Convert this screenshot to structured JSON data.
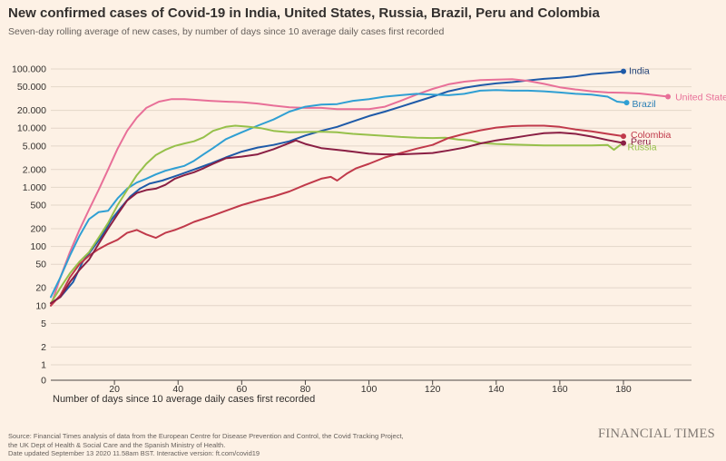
{
  "title": "New confirmed cases of Covid-19 in India, United States, Russia, Brazil, Peru and Colombia",
  "subtitle": "Seven-day rolling average of new cases, by number of days since 10 average daily cases first recorded",
  "source_lines": [
    "Source: Financial Times analysis of data from the European Centre for Disease Prevention and Control, the Covid Tracking Project,",
    "the UK Dept of Health & Social Care and the Spanish Ministry of Health.",
    "Date updated September 13 2020 11.58am BST. Interactive version: ft.com/covid19"
  ],
  "brand": "FINANCIAL TIMES",
  "chart_data": {
    "type": "line",
    "title": "New confirmed cases of Covid-19 in India, United States, Russia, Brazil, Peru and Colombia",
    "subtitle": "Seven-day rolling average of new cases, by number of days since 10 average daily cases first recorded",
    "xlabel": "Number of days since 10 average daily cases first recorded",
    "ylabel": "",
    "y_scale": "symlog",
    "xlim": [
      0,
      197
    ],
    "ylim": [
      0,
      100000
    ],
    "x_ticks": [
      20,
      40,
      60,
      80,
      100,
      120,
      140,
      160,
      180
    ],
    "y_ticks": [
      {
        "value": 0,
        "label": "0"
      },
      {
        "value": 1,
        "label": "1"
      },
      {
        "value": 2,
        "label": "2"
      },
      {
        "value": 5,
        "label": "5"
      },
      {
        "value": 10,
        "label": "10"
      },
      {
        "value": 20,
        "label": "20"
      },
      {
        "value": 50,
        "label": "50"
      },
      {
        "value": 100,
        "label": "100"
      },
      {
        "value": 200,
        "label": "200"
      },
      {
        "value": 500,
        "label": "500"
      },
      {
        "value": 1000,
        "label": "1.000"
      },
      {
        "value": 2000,
        "label": "2.000"
      },
      {
        "value": 5000,
        "label": "5.000"
      },
      {
        "value": 10000,
        "label": "10.000"
      },
      {
        "value": 20000,
        "label": "20.000"
      },
      {
        "value": 50000,
        "label": "50.000"
      },
      {
        "value": 100000,
        "label": "100.000"
      }
    ],
    "grid": true,
    "series": [
      {
        "name": "India",
        "color": "#1e5aa8",
        "label_color": "#1e3f75",
        "end_marker": true,
        "points": [
          [
            0,
            11
          ],
          [
            3,
            14
          ],
          [
            7,
            25
          ],
          [
            10,
            55
          ],
          [
            13,
            90
          ],
          [
            16,
            150
          ],
          [
            19,
            280
          ],
          [
            22,
            450
          ],
          [
            25,
            700
          ],
          [
            28,
            950
          ],
          [
            31,
            1150
          ],
          [
            35,
            1300
          ],
          [
            40,
            1600
          ],
          [
            45,
            2000
          ],
          [
            50,
            2500
          ],
          [
            55,
            3200
          ],
          [
            60,
            4000
          ],
          [
            65,
            4700
          ],
          [
            70,
            5200
          ],
          [
            75,
            6000
          ],
          [
            80,
            7500
          ],
          [
            85,
            9000
          ],
          [
            90,
            10500
          ],
          [
            95,
            13000
          ],
          [
            100,
            16000
          ],
          [
            105,
            19000
          ],
          [
            110,
            23000
          ],
          [
            115,
            28000
          ],
          [
            120,
            34000
          ],
          [
            125,
            42000
          ],
          [
            130,
            48000
          ],
          [
            135,
            53000
          ],
          [
            140,
            57000
          ],
          [
            145,
            60000
          ],
          [
            150,
            64000
          ],
          [
            155,
            68000
          ],
          [
            160,
            71000
          ],
          [
            165,
            75000
          ],
          [
            170,
            82000
          ],
          [
            175,
            86000
          ],
          [
            180,
            91000
          ]
        ]
      },
      {
        "name": "United States",
        "color": "#e86f98",
        "label_color": "#e86f98",
        "end_marker": true,
        "points": [
          [
            0,
            10
          ],
          [
            3,
            30
          ],
          [
            6,
            80
          ],
          [
            9,
            190
          ],
          [
            12,
            420
          ],
          [
            15,
            900
          ],
          [
            18,
            2000
          ],
          [
            21,
            4500
          ],
          [
            24,
            9000
          ],
          [
            27,
            15000
          ],
          [
            30,
            22000
          ],
          [
            34,
            28000
          ],
          [
            38,
            31000
          ],
          [
            42,
            31000
          ],
          [
            46,
            30000
          ],
          [
            50,
            29000
          ],
          [
            55,
            28000
          ],
          [
            60,
            27500
          ],
          [
            65,
            26000
          ],
          [
            70,
            24000
          ],
          [
            75,
            22500
          ],
          [
            80,
            22000
          ],
          [
            85,
            22000
          ],
          [
            90,
            21000
          ],
          [
            95,
            21000
          ],
          [
            100,
            21000
          ],
          [
            105,
            23000
          ],
          [
            110,
            29000
          ],
          [
            115,
            37000
          ],
          [
            120,
            46000
          ],
          [
            125,
            55000
          ],
          [
            130,
            61000
          ],
          [
            135,
            65000
          ],
          [
            140,
            66000
          ],
          [
            145,
            67000
          ],
          [
            150,
            63000
          ],
          [
            155,
            56000
          ],
          [
            160,
            49000
          ],
          [
            165,
            45000
          ],
          [
            170,
            42000
          ],
          [
            175,
            40000
          ],
          [
            180,
            39500
          ],
          [
            185,
            38500
          ],
          [
            190,
            36000
          ],
          [
            194,
            34000
          ]
        ]
      },
      {
        "name": "Brazil",
        "color": "#2f9fd3",
        "label_color": "#2a7fb5",
        "end_marker": true,
        "points": [
          [
            0,
            14
          ],
          [
            3,
            30
          ],
          [
            6,
            70
          ],
          [
            9,
            150
          ],
          [
            12,
            290
          ],
          [
            15,
            380
          ],
          [
            18,
            400
          ],
          [
            21,
            650
          ],
          [
            24,
            950
          ],
          [
            27,
            1200
          ],
          [
            30,
            1400
          ],
          [
            33,
            1650
          ],
          [
            36,
            1900
          ],
          [
            39,
            2100
          ],
          [
            42,
            2300
          ],
          [
            45,
            2800
          ],
          [
            48,
            3600
          ],
          [
            51,
            4600
          ],
          [
            55,
            6500
          ],
          [
            60,
            8500
          ],
          [
            65,
            11000
          ],
          [
            70,
            14000
          ],
          [
            75,
            19000
          ],
          [
            80,
            23000
          ],
          [
            85,
            25000
          ],
          [
            90,
            25500
          ],
          [
            95,
            29000
          ],
          [
            100,
            31000
          ],
          [
            105,
            34000
          ],
          [
            110,
            36000
          ],
          [
            115,
            38000
          ],
          [
            120,
            37000
          ],
          [
            125,
            36000
          ],
          [
            130,
            38000
          ],
          [
            135,
            43000
          ],
          [
            140,
            44000
          ],
          [
            145,
            43000
          ],
          [
            150,
            43000
          ],
          [
            155,
            42000
          ],
          [
            160,
            40000
          ],
          [
            165,
            38000
          ],
          [
            170,
            37000
          ],
          [
            175,
            34000
          ],
          [
            178,
            28000
          ],
          [
            181,
            27000
          ]
        ]
      },
      {
        "name": "Russia",
        "color": "#96c04a",
        "label_color": "#96c04a",
        "end_marker": false,
        "points": [
          [
            0,
            11
          ],
          [
            3,
            20
          ],
          [
            6,
            35
          ],
          [
            9,
            55
          ],
          [
            12,
            80
          ],
          [
            15,
            140
          ],
          [
            18,
            250
          ],
          [
            21,
            500
          ],
          [
            24,
            900
          ],
          [
            27,
            1600
          ],
          [
            30,
            2500
          ],
          [
            33,
            3500
          ],
          [
            36,
            4300
          ],
          [
            39,
            5000
          ],
          [
            42,
            5500
          ],
          [
            45,
            6000
          ],
          [
            48,
            7000
          ],
          [
            51,
            9000
          ],
          [
            55,
            10500
          ],
          [
            58,
            11000
          ],
          [
            62,
            10600
          ],
          [
            66,
            10000
          ],
          [
            70,
            9000
          ],
          [
            75,
            8500
          ],
          [
            80,
            8600
          ],
          [
            85,
            8700
          ],
          [
            90,
            8500
          ],
          [
            95,
            8000
          ],
          [
            100,
            7700
          ],
          [
            105,
            7400
          ],
          [
            110,
            7100
          ],
          [
            115,
            6900
          ],
          [
            120,
            6800
          ],
          [
            124,
            6900
          ],
          [
            128,
            6400
          ],
          [
            132,
            6200
          ],
          [
            135,
            5600
          ],
          [
            140,
            5400
          ],
          [
            145,
            5300
          ],
          [
            150,
            5200
          ],
          [
            155,
            5100
          ],
          [
            160,
            5100
          ],
          [
            165,
            5100
          ],
          [
            170,
            5100
          ],
          [
            175,
            5200
          ],
          [
            177,
            4300
          ],
          [
            179,
            5200
          ]
        ]
      },
      {
        "name": "Colombia",
        "color": "#c0394a",
        "label_color": "#c0394a",
        "end_marker": true,
        "points": [
          [
            0,
            10
          ],
          [
            3,
            15
          ],
          [
            6,
            30
          ],
          [
            9,
            50
          ],
          [
            12,
            70
          ],
          [
            15,
            90
          ],
          [
            18,
            110
          ],
          [
            21,
            130
          ],
          [
            24,
            170
          ],
          [
            27,
            190
          ],
          [
            30,
            160
          ],
          [
            33,
            140
          ],
          [
            36,
            170
          ],
          [
            39,
            190
          ],
          [
            42,
            220
          ],
          [
            45,
            260
          ],
          [
            50,
            320
          ],
          [
            55,
            400
          ],
          [
            60,
            500
          ],
          [
            65,
            600
          ],
          [
            70,
            700
          ],
          [
            75,
            850
          ],
          [
            80,
            1100
          ],
          [
            85,
            1400
          ],
          [
            88,
            1500
          ],
          [
            90,
            1300
          ],
          [
            93,
            1700
          ],
          [
            96,
            2100
          ],
          [
            100,
            2500
          ],
          [
            105,
            3200
          ],
          [
            110,
            3800
          ],
          [
            115,
            4500
          ],
          [
            120,
            5200
          ],
          [
            125,
            6800
          ],
          [
            130,
            8000
          ],
          [
            135,
            9200
          ],
          [
            140,
            10200
          ],
          [
            145,
            10800
          ],
          [
            150,
            11000
          ],
          [
            155,
            11000
          ],
          [
            160,
            10500
          ],
          [
            165,
            9500
          ],
          [
            170,
            8800
          ],
          [
            175,
            8000
          ],
          [
            180,
            7300
          ]
        ]
      },
      {
        "name": "Peru",
        "color": "#8a1f44",
        "label_color": "#8a1f44",
        "end_marker": true,
        "points": [
          [
            0,
            11
          ],
          [
            3,
            14
          ],
          [
            6,
            25
          ],
          [
            9,
            40
          ],
          [
            12,
            60
          ],
          [
            15,
            110
          ],
          [
            18,
            200
          ],
          [
            21,
            350
          ],
          [
            24,
            600
          ],
          [
            27,
            800
          ],
          [
            30,
            900
          ],
          [
            33,
            950
          ],
          [
            36,
            1100
          ],
          [
            39,
            1400
          ],
          [
            42,
            1600
          ],
          [
            45,
            1800
          ],
          [
            48,
            2100
          ],
          [
            51,
            2500
          ],
          [
            55,
            3100
          ],
          [
            60,
            3300
          ],
          [
            65,
            3600
          ],
          [
            70,
            4400
          ],
          [
            75,
            5600
          ],
          [
            77,
            6200
          ],
          [
            80,
            5400
          ],
          [
            85,
            4600
          ],
          [
            90,
            4300
          ],
          [
            95,
            4000
          ],
          [
            100,
            3700
          ],
          [
            105,
            3600
          ],
          [
            110,
            3600
          ],
          [
            115,
            3700
          ],
          [
            120,
            3800
          ],
          [
            125,
            4200
          ],
          [
            130,
            4700
          ],
          [
            135,
            5500
          ],
          [
            140,
            6200
          ],
          [
            145,
            6800
          ],
          [
            150,
            7500
          ],
          [
            155,
            8200
          ],
          [
            160,
            8400
          ],
          [
            165,
            8000
          ],
          [
            170,
            7200
          ],
          [
            175,
            6300
          ],
          [
            180,
            5600
          ]
        ]
      }
    ]
  }
}
